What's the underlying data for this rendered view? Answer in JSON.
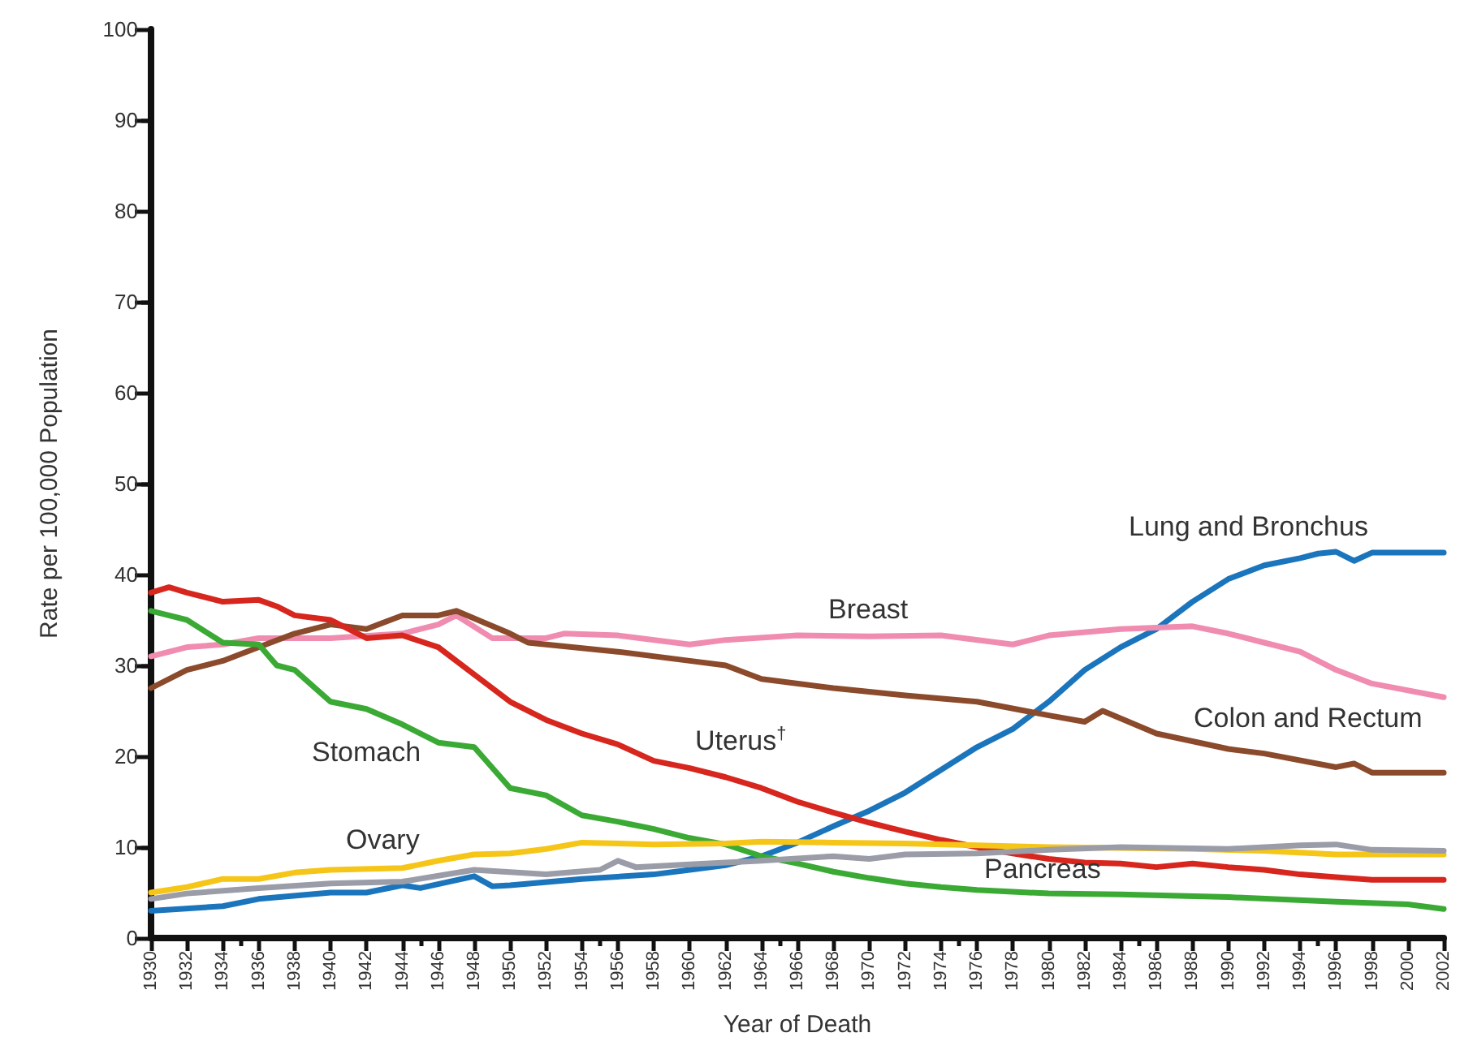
{
  "chart_data": {
    "type": "line",
    "xlabel": "Year of Death",
    "ylabel": "Rate per 100,000 Population",
    "xlim": [
      1930,
      2002
    ],
    "ylim": [
      0,
      100
    ],
    "xticks": [
      1930,
      1932,
      1934,
      1936,
      1938,
      1940,
      1942,
      1944,
      1946,
      1948,
      1950,
      1952,
      1954,
      1956,
      1958,
      1960,
      1962,
      1964,
      1966,
      1968,
      1970,
      1972,
      1974,
      1976,
      1978,
      1980,
      1982,
      1984,
      1986,
      1988,
      1990,
      1992,
      1994,
      1996,
      1998,
      2000,
      2002
    ],
    "yticks": [
      0,
      10,
      20,
      30,
      40,
      50,
      60,
      70,
      80,
      90,
      100
    ],
    "grid": false,
    "marker": "none",
    "line_style": "solid",
    "series": [
      {
        "name": "Lung and Bronchus",
        "color": "#1b75bc",
        "x": [
          1930,
          1934,
          1936,
          1940,
          1942,
          1944,
          1945,
          1948,
          1949,
          1950,
          1954,
          1958,
          1960,
          1962,
          1964,
          1966,
          1968,
          1970,
          1972,
          1974,
          1976,
          1978,
          1980,
          1982,
          1984,
          1986,
          1988,
          1990,
          1992,
          1994,
          1995,
          1996,
          1997,
          1998,
          2002
        ],
        "values": [
          3,
          3.5,
          4.3,
          5,
          5,
          5.8,
          5.5,
          6.8,
          5.7,
          5.8,
          6.5,
          7,
          7.5,
          8,
          9,
          10.5,
          12.3,
          14,
          16,
          18.5,
          21,
          23,
          26,
          29.5,
          32,
          34,
          37,
          39.5,
          41,
          41.8,
          42.3,
          42.5,
          41.5,
          42.4,
          42.4
        ]
      },
      {
        "name": "Breast",
        "color": "#f08cb0",
        "x": [
          1930,
          1932,
          1934,
          1936,
          1940,
          1944,
          1946,
          1947,
          1949,
          1952,
          1953,
          1956,
          1960,
          1962,
          1966,
          1970,
          1974,
          1978,
          1980,
          1984,
          1988,
          1990,
          1992,
          1994,
          1996,
          1998,
          2002
        ],
        "values": [
          31,
          32,
          32.3,
          33,
          33,
          33.5,
          34.5,
          35.5,
          33,
          33,
          33.5,
          33.3,
          32.3,
          32.8,
          33.3,
          33.2,
          33.3,
          32.3,
          33.3,
          34,
          34.3,
          33.5,
          32.5,
          31.5,
          29.5,
          28,
          26.5
        ]
      },
      {
        "name": "Colon and Rectum",
        "color": "#8b4a2b",
        "x": [
          1930,
          1932,
          1934,
          1936,
          1938,
          1940,
          1942,
          1944,
          1946,
          1947,
          1950,
          1951,
          1956,
          1960,
          1962,
          1964,
          1968,
          1972,
          1976,
          1980,
          1982,
          1983,
          1986,
          1990,
          1992,
          1996,
          1997,
          1998,
          2002
        ],
        "values": [
          27.5,
          29.5,
          30.5,
          32,
          33.5,
          34.5,
          34,
          35.5,
          35.5,
          36,
          33.5,
          32.5,
          31.5,
          30.5,
          30,
          28.5,
          27.5,
          26.7,
          26,
          24.5,
          23.8,
          25,
          22.5,
          20.8,
          20.3,
          18.8,
          19.2,
          18.2,
          18.2
        ]
      },
      {
        "name": "Uterus$^{†}$",
        "color": "#d7261e",
        "x": [
          1930,
          1931,
          1932,
          1934,
          1936,
          1937,
          1938,
          1940,
          1942,
          1944,
          1946,
          1948,
          1950,
          1952,
          1954,
          1956,
          1958,
          1960,
          1962,
          1964,
          1966,
          1968,
          1970,
          1972,
          1974,
          1976,
          1978,
          1980,
          1982,
          1984,
          1986,
          1988,
          1990,
          1992,
          1994,
          1996,
          1998,
          2002
        ],
        "values": [
          38,
          38.6,
          38,
          37,
          37.2,
          36.5,
          35.5,
          35,
          33,
          33.3,
          32,
          29,
          26,
          24,
          22.5,
          21.3,
          19.5,
          18.7,
          17.7,
          16.5,
          15,
          13.8,
          12.7,
          11.7,
          10.8,
          10,
          9.3,
          8.7,
          8.3,
          8.2,
          7.8,
          8.2,
          7.8,
          7.5,
          7,
          6.7,
          6.4,
          6.4
        ]
      },
      {
        "name": "Stomach",
        "color": "#3aaa35",
        "x": [
          1930,
          1932,
          1934,
          1936,
          1937,
          1938,
          1940,
          1942,
          1944,
          1946,
          1948,
          1950,
          1952,
          1954,
          1956,
          1958,
          1960,
          1962,
          1964,
          1966,
          1968,
          1970,
          1972,
          1974,
          1976,
          1978,
          1980,
          1984,
          1990,
          1996,
          2000,
          2002
        ],
        "values": [
          36,
          35,
          32.5,
          32.3,
          30,
          29.5,
          26,
          25.2,
          23.5,
          21.5,
          21,
          16.5,
          15.7,
          13.5,
          12.8,
          12,
          11,
          10.3,
          9,
          8.2,
          7.3,
          6.6,
          6,
          5.6,
          5.3,
          5.1,
          4.9,
          4.8,
          4.5,
          4,
          3.7,
          3.2
        ]
      },
      {
        "name": "Ovary",
        "color": "#f5c518",
        "x": [
          1930,
          1932,
          1934,
          1936,
          1938,
          1940,
          1944,
          1946,
          1948,
          1950,
          1952,
          1954,
          1958,
          1962,
          1964,
          1968,
          1972,
          1976,
          1980,
          1984,
          1988,
          1992,
          1996,
          2002
        ],
        "values": [
          5,
          5.6,
          6.5,
          6.5,
          7.2,
          7.5,
          7.7,
          8.5,
          9.2,
          9.3,
          9.8,
          10.5,
          10.3,
          10.4,
          10.6,
          10.5,
          10.4,
          10.2,
          10,
          9.9,
          9.8,
          9.6,
          9.2,
          9.2
        ]
      },
      {
        "name": "Pancreas",
        "color": "#9a9ca8",
        "x": [
          1930,
          1932,
          1936,
          1940,
          1944,
          1948,
          1952,
          1955,
          1956,
          1957,
          1960,
          1964,
          1968,
          1970,
          1972,
          1976,
          1978,
          1980,
          1984,
          1990,
          1994,
          1996,
          1998,
          2002
        ],
        "values": [
          4.3,
          4.9,
          5.5,
          6,
          6.2,
          7.5,
          7,
          7.5,
          8.5,
          7.8,
          8.1,
          8.5,
          9,
          8.7,
          9.2,
          9.3,
          9.5,
          9.7,
          10,
          9.8,
          10.2,
          10.3,
          9.7,
          9.6
        ]
      }
    ]
  }
}
